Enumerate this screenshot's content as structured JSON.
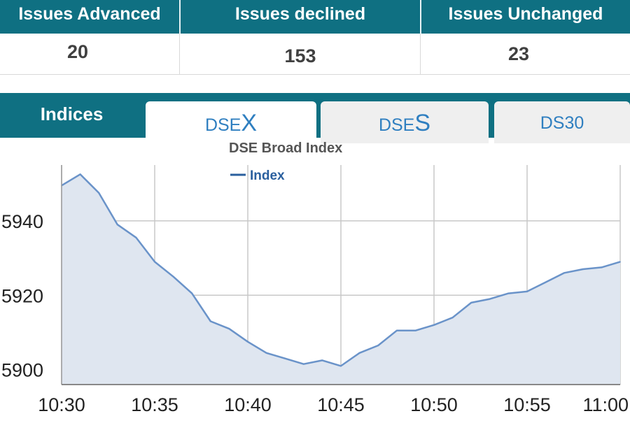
{
  "stats": {
    "headers": [
      "Issues Advanced",
      "Issues declined",
      "Issues Unchanged"
    ],
    "values": [
      "20",
      "153",
      "23"
    ]
  },
  "tabs": {
    "indices": "Indices",
    "dsex_prefix": "DSE",
    "dsex_suffix": "X",
    "dses_prefix": "DSE",
    "dses_suffix": "S",
    "ds30": "DS30"
  },
  "colors": {
    "header_teal": "#0f7082",
    "line": "#6a93c9",
    "fill": "#dfe6f0",
    "legend_text": "#2a5f9e"
  },
  "chart_data": {
    "type": "area",
    "title": "DSE Broad Index",
    "legend": {
      "entries": [
        "Index"
      ],
      "placement": "top-left"
    },
    "xlabel": "",
    "ylabel": "",
    "x_ticks": [
      "10:30",
      "10:35",
      "10:40",
      "10:45",
      "10:50",
      "10:55",
      "11:00"
    ],
    "y_ticks": [
      5900,
      5920,
      5940
    ],
    "ylim": [
      5896,
      5955
    ],
    "xlim": [
      "10:30",
      "11:00"
    ],
    "grid": true,
    "series": [
      {
        "name": "Index",
        "x": [
          "10:30",
          "10:31",
          "10:32",
          "10:33",
          "10:34",
          "10:35",
          "10:36",
          "10:37",
          "10:38",
          "10:39",
          "10:40",
          "10:41",
          "10:42",
          "10:43",
          "10:44",
          "10:45",
          "10:46",
          "10:47",
          "10:48",
          "10:49",
          "10:50",
          "10:51",
          "10:52",
          "10:53",
          "10:54",
          "10:55",
          "10:56",
          "10:57",
          "10:58",
          "10:59",
          "11:00"
        ],
        "values": [
          5949.5,
          5952.5,
          5947.5,
          5939,
          5935.5,
          5929,
          5925,
          5920.5,
          5913,
          5911,
          5907.5,
          5904.5,
          5903,
          5901.5,
          5902.5,
          5901,
          5904.5,
          5906.5,
          5910.5,
          5910.5,
          5912,
          5914,
          5918,
          5919,
          5920.5,
          5921,
          5923.5,
          5926,
          5927,
          5927.5,
          5929
        ]
      }
    ]
  }
}
